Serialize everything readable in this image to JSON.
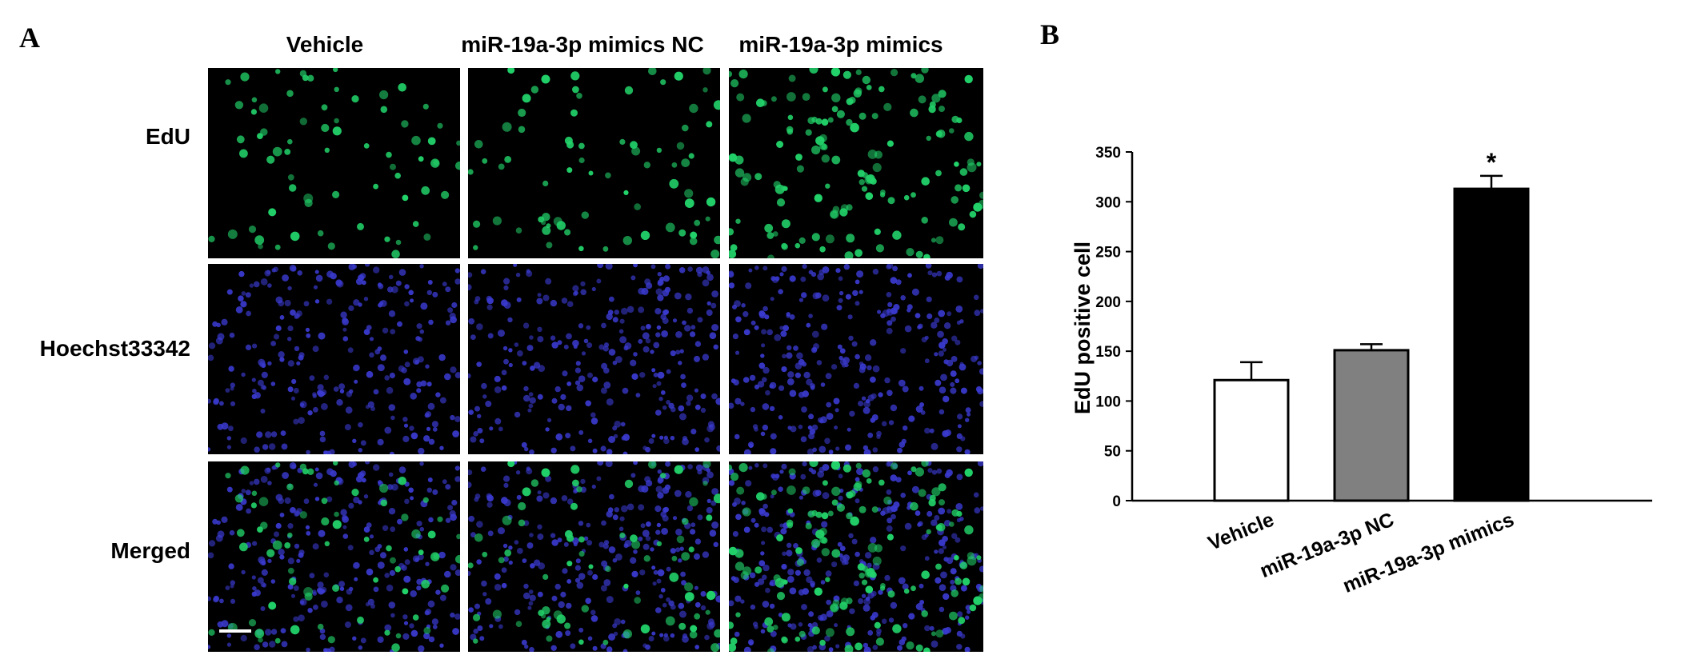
{
  "figure": {
    "panel_a_label": "A",
    "panel_b_label": "B",
    "columns": [
      "Vehicle",
      "miR-19a-3p mimics NC",
      "miR-19a-3p mimics"
    ],
    "rows": [
      "EdU",
      "Hoechst33342",
      "Merged"
    ],
    "colors": {
      "background": "#000000",
      "edu_green": "#22d36a",
      "hoechst_blue": "#3a3ad0",
      "scale_bar": "#ffffff"
    }
  },
  "chart_data": {
    "type": "bar",
    "categories": [
      "Vehicle",
      "miR-19a-3p NC",
      "miR-19a-3p mimics"
    ],
    "values": [
      121,
      151,
      313
    ],
    "errors": [
      18,
      6,
      13
    ],
    "bar_colors": [
      "#ffffff",
      "#808080",
      "#000000"
    ],
    "ylabel": "EdU positive cell",
    "ylim": [
      0,
      350
    ],
    "yticks": [
      "0",
      "50",
      "100",
      "150",
      "200",
      "250",
      "300",
      "350"
    ],
    "significance": [
      "",
      "",
      "*"
    ],
    "grid": false
  }
}
